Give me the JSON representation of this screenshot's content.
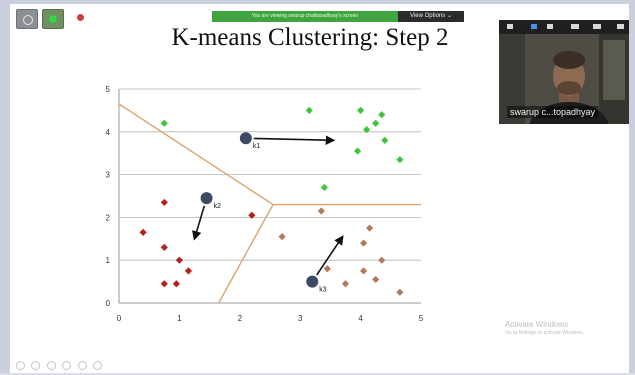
{
  "app": {
    "share_banner": "You are viewing swarup chattopadhyay's screen",
    "view_options": "View Options ⌄",
    "toolbar_icons": [
      "settings-icon",
      "green-status-icon",
      "record-indicator-icon"
    ]
  },
  "slide": {
    "title": "K-means Clustering: Step 2"
  },
  "video": {
    "participant_name": "swarup c...topadhyay"
  },
  "watermark": {
    "title": "Activate Windows",
    "subtitle": "Go to Settings to activate Windows."
  },
  "colors": {
    "green_cluster": "#3ec43e",
    "red_cluster": "#b5211f",
    "brown_cluster": "#b27a5c",
    "centroid": "#3c4a63",
    "boundary": "#dca26f",
    "share_banner": "#3fa33f"
  },
  "chart_data": {
    "type": "scatter",
    "title": "",
    "xlabel": "",
    "ylabel": "",
    "xlim": [
      0,
      5
    ],
    "ylim": [
      0,
      5
    ],
    "xticks": [
      "0",
      "1",
      "2",
      "3",
      "4",
      "5"
    ],
    "yticks": [
      "0",
      "1",
      "2",
      "3",
      "4",
      "5"
    ],
    "grid": "horizontal",
    "series": [
      {
        "color": "#3ec43e",
        "points": [
          [
            0.75,
            4.2
          ],
          [
            3.15,
            4.5
          ],
          [
            4.0,
            4.5
          ],
          [
            4.35,
            4.4
          ],
          [
            4.1,
            4.05
          ],
          [
            4.25,
            4.2
          ],
          [
            3.95,
            3.55
          ],
          [
            4.4,
            3.8
          ],
          [
            4.65,
            3.35
          ],
          [
            3.4,
            2.7
          ]
        ]
      },
      {
        "color": "#b5211f",
        "points": [
          [
            0.75,
            2.35
          ],
          [
            0.4,
            1.65
          ],
          [
            0.75,
            1.3
          ],
          [
            1.0,
            1.0
          ],
          [
            1.15,
            0.75
          ],
          [
            0.75,
            0.45
          ],
          [
            0.95,
            0.45
          ],
          [
            2.2,
            2.05
          ]
        ]
      },
      {
        "color": "#b27a5c",
        "points": [
          [
            3.35,
            2.15
          ],
          [
            4.15,
            1.75
          ],
          [
            2.7,
            1.55
          ],
          [
            4.05,
            1.4
          ],
          [
            4.35,
            1.0
          ],
          [
            3.45,
            0.8
          ],
          [
            4.05,
            0.75
          ],
          [
            4.25,
            0.55
          ],
          [
            3.75,
            0.45
          ],
          [
            4.65,
            0.25
          ]
        ]
      }
    ],
    "centroids": [
      {
        "label": "k1",
        "x": 2.1,
        "y": 3.85,
        "arrow_to": [
          3.55,
          3.8
        ]
      },
      {
        "label": "k2",
        "x": 1.45,
        "y": 2.45,
        "arrow_to": [
          1.25,
          1.5
        ]
      },
      {
        "label": "k3",
        "x": 3.2,
        "y": 0.5,
        "arrow_to": [
          3.7,
          1.55
        ]
      }
    ],
    "boundaries": [
      [
        [
          0.0,
          4.65
        ],
        [
          2.55,
          2.3
        ],
        [
          5.0,
          2.3
        ]
      ],
      [
        [
          2.55,
          2.3
        ],
        [
          1.65,
          0.0
        ]
      ]
    ]
  }
}
